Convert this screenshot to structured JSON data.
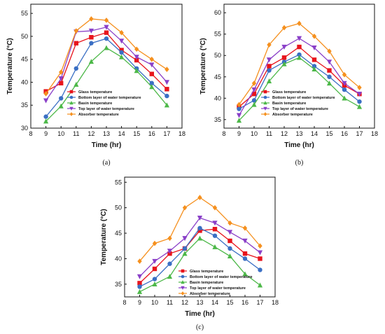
{
  "chart_data": [
    {
      "type": "line",
      "panel_label": "(a)",
      "xlabel": "Time (hr)",
      "ylabel": "Temperature (°C)",
      "xlim": [
        8,
        18
      ],
      "ylim": [
        30,
        57
      ],
      "xticks": [
        8,
        9,
        10,
        11,
        12,
        13,
        14,
        15,
        16,
        17,
        18
      ],
      "yticks": [
        30,
        35,
        40,
        45,
        50,
        55
      ],
      "legend_position": "bottom-center",
      "x": [
        9,
        10,
        11,
        12,
        13,
        14,
        15,
        16,
        17
      ],
      "series": [
        {
          "name": "Glass temperature",
          "color": "#e8141c",
          "marker": "square",
          "values": [
            38,
            39.8,
            48.5,
            49.8,
            50.8,
            47,
            44.8,
            41.8,
            38.5
          ]
        },
        {
          "name": "Bottom layer of water temperature",
          "color": "#3a6fc4",
          "marker": "circle",
          "values": [
            32.5,
            36.5,
            43,
            48.5,
            49.5,
            46.5,
            43,
            39.8,
            37
          ]
        },
        {
          "name": "Basin temperature",
          "color": "#4cb848",
          "marker": "triangle-up",
          "values": [
            31.5,
            34.8,
            39.5,
            44.5,
            47.5,
            45.5,
            42.5,
            39,
            35
          ]
        },
        {
          "name": "Top layer of water temperature",
          "color": "#8a3fc8",
          "marker": "triangle-down",
          "values": [
            36,
            40.8,
            51,
            51.2,
            52,
            49,
            45.5,
            43.8,
            40
          ]
        },
        {
          "name": "Absorber temperature",
          "color": "#f5901e",
          "marker": "diamond",
          "values": [
            37.5,
            42.2,
            51.2,
            53.8,
            53.5,
            50.8,
            47.2,
            45,
            42.8
          ]
        }
      ]
    },
    {
      "type": "line",
      "panel_label": "(b)",
      "xlabel": "Time (hr)",
      "ylabel": "Temperature (°C)",
      "xlim": [
        8,
        18
      ],
      "ylim": [
        33,
        62
      ],
      "xticks": [
        8,
        9,
        10,
        11,
        12,
        13,
        14,
        15,
        16,
        17,
        18
      ],
      "yticks": [
        35,
        40,
        45,
        50,
        55,
        60
      ],
      "legend_position": "bottom-center",
      "x": [
        9,
        10,
        11,
        12,
        13,
        14,
        15,
        16,
        17
      ],
      "series": [
        {
          "name": "Glass temperature",
          "color": "#e8141c",
          "marker": "square",
          "values": [
            38,
            41,
            47.5,
            49.5,
            52,
            49,
            46.5,
            43,
            41
          ]
        },
        {
          "name": "Bottom layer of water temperature",
          "color": "#3a6fc4",
          "marker": "circle",
          "values": [
            37.5,
            39.5,
            46.5,
            48.5,
            50.2,
            47.5,
            45,
            42,
            39.2
          ]
        },
        {
          "name": "Basin temperature",
          "color": "#4cb848",
          "marker": "triangle-up",
          "values": [
            34.8,
            38.5,
            44,
            48,
            49.5,
            46.8,
            43.5,
            40,
            38
          ]
        },
        {
          "name": "Top layer of water temperature",
          "color": "#8a3fc8",
          "marker": "triangle-down",
          "values": [
            36,
            42,
            49,
            52,
            54,
            51.8,
            48.5,
            43.5,
            41
          ]
        },
        {
          "name": "Absorber temperature",
          "color": "#f5901e",
          "marker": "diamond",
          "values": [
            38.5,
            43.5,
            52.5,
            56.5,
            57.5,
            54.5,
            51,
            45.5,
            42.5
          ]
        }
      ]
    },
    {
      "type": "line",
      "panel_label": "(c)",
      "xlabel": "Time (hr)",
      "ylabel": "Temperature (°C)",
      "xlim": [
        8,
        18
      ],
      "ylim": [
        32.5,
        56
      ],
      "xticks": [
        8,
        9,
        10,
        11,
        12,
        13,
        14,
        15,
        16,
        17,
        18
      ],
      "yticks": [
        35,
        40,
        45,
        50,
        55
      ],
      "legend_position": "bottom-center",
      "x": [
        9,
        10,
        11,
        12,
        13,
        14,
        15,
        16,
        17
      ],
      "series": [
        {
          "name": "Glass temperature",
          "color": "#e8141c",
          "marker": "square",
          "values": [
            35.2,
            38,
            41,
            42,
            45.5,
            45.8,
            43.5,
            41,
            40
          ]
        },
        {
          "name": "Bottom layer of water temperature",
          "color": "#3a6fc4",
          "marker": "circle",
          "values": [
            34.5,
            36,
            39,
            42,
            46,
            44.5,
            42,
            40,
            37.8
          ]
        },
        {
          "name": "Basin temperature",
          "color": "#4cb848",
          "marker": "triangle-up",
          "values": [
            33.5,
            35,
            36.5,
            41,
            44,
            42.3,
            40.5,
            37,
            34.8
          ]
        },
        {
          "name": "Top layer of water temperature",
          "color": "#8a3fc8",
          "marker": "triangle-down",
          "values": [
            36.5,
            39.5,
            41.5,
            44,
            48,
            47,
            45.2,
            43.5,
            41.2
          ]
        },
        {
          "name": "Absorber temperature",
          "color": "#f5901e",
          "marker": "diamond",
          "values": [
            39.5,
            43,
            44,
            50,
            52,
            50,
            47,
            46,
            42.5
          ]
        }
      ]
    }
  ]
}
